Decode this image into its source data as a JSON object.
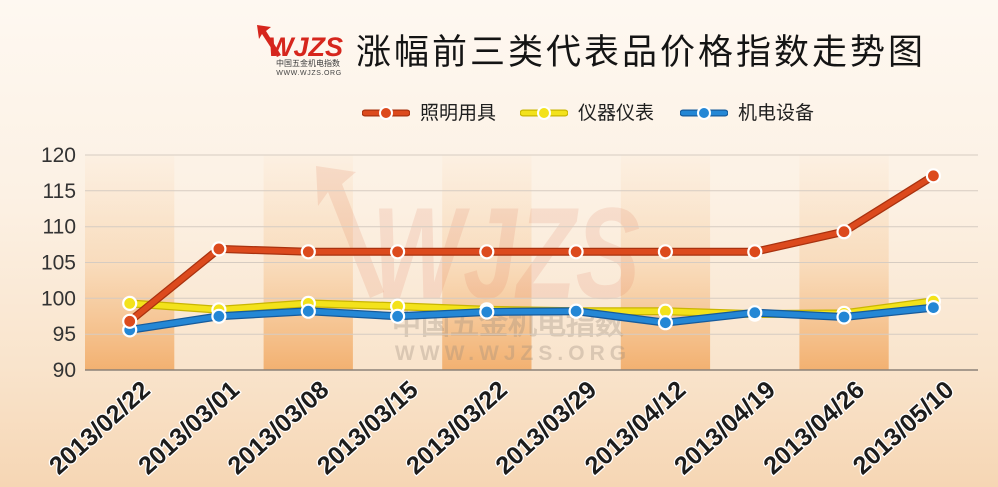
{
  "logo": {
    "brand": "WJZS",
    "cn_name": "中国五金机电指数",
    "url": "WWW.WJZS.ORG",
    "color": "#d6261d"
  },
  "watermark": {
    "brand": "WJZS",
    "cn_name": "中国五金机电指数",
    "url": "WWW.WJZS.ORG"
  },
  "chart_data": {
    "type": "line",
    "title": "涨幅前三类代表品价格指数走势图",
    "categories": [
      "2013/02/22",
      "2013/03/01",
      "2013/03/08",
      "2013/03/15",
      "2013/03/22",
      "2013/03/29",
      "2013/04/12",
      "2013/04/19",
      "2013/04/26",
      "2013/05/10"
    ],
    "ylim": [
      90,
      120
    ],
    "yticks": [
      90,
      95,
      100,
      105,
      110,
      115,
      120
    ],
    "grid": true,
    "legend_position": "top",
    "series": [
      {
        "name": "照明用具",
        "color": "#dc4a1d",
        "edge_color": "#a9320f",
        "values": [
          96.8,
          106.9,
          106.5,
          106.5,
          106.5,
          106.5,
          106.5,
          106.5,
          109.3,
          117.1
        ]
      },
      {
        "name": "仪器仪表",
        "color": "#f3e21b",
        "edge_color": "#c9b602",
        "values": [
          99.3,
          98.4,
          99.3,
          98.9,
          98.4,
          98.2,
          98.2,
          97.8,
          97.9,
          99.6
        ]
      },
      {
        "name": "机电设备",
        "color": "#2487d5",
        "edge_color": "#165b9c",
        "values": [
          95.6,
          97.5,
          98.2,
          97.5,
          98.1,
          98.2,
          96.6,
          98.0,
          97.4,
          98.7
        ]
      }
    ]
  }
}
